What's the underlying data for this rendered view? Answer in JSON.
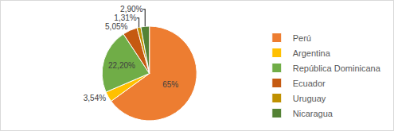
{
  "chart_data": {
    "type": "pie",
    "categories": [
      "Perú",
      "Argentina",
      "República Dominicana",
      "Ecuador",
      "Uruguay",
      "Nicaragua"
    ],
    "values": [
      65,
      3.54,
      22.2,
      5.05,
      1.31,
      2.9
    ],
    "value_labels": [
      "65%",
      "3,54%",
      "22,20%",
      "5,05%",
      "1,31%",
      "2,90%"
    ],
    "colors": [
      "#ed7d31",
      "#ffc000",
      "#70ad47",
      "#c55a11",
      "#bf9000",
      "#548235"
    ],
    "data_labels": true,
    "legend": "right"
  }
}
